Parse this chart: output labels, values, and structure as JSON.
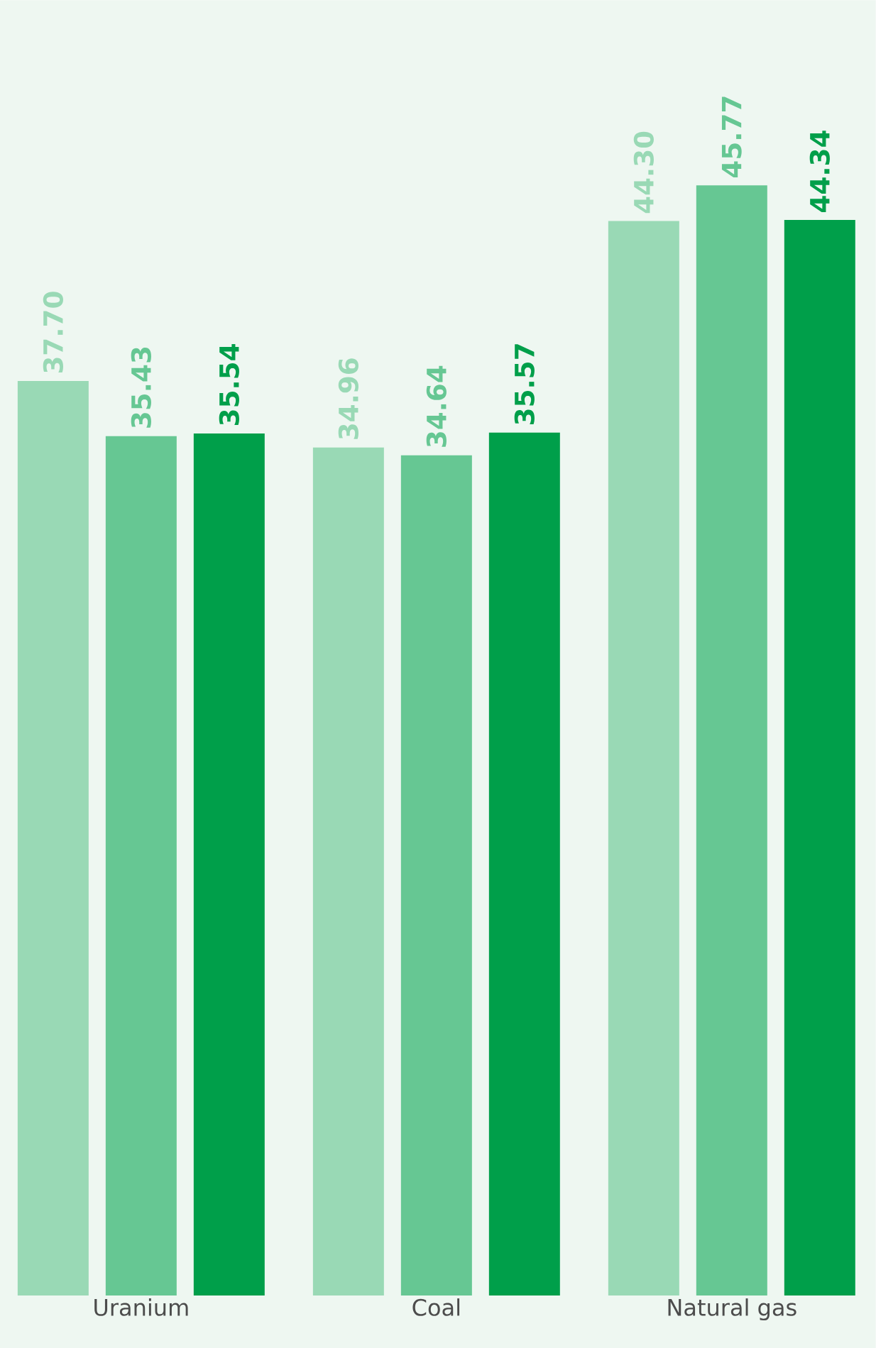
{
  "chart_data": {
    "type": "bar",
    "categories": [
      "Uranium",
      "Coal",
      "Natural gas"
    ],
    "series": [
      {
        "color": "#99d9b5",
        "values": [
          37.7,
          34.96,
          44.3
        ],
        "value_labels": [
          "37.70",
          "34.96",
          "44.30"
        ]
      },
      {
        "color": "#66c793",
        "values": [
          35.43,
          34.64,
          45.77
        ],
        "value_labels": [
          "35.43",
          "34.64",
          "45.77"
        ]
      },
      {
        "color": "#009f4a",
        "values": [
          35.54,
          35.57,
          44.34
        ],
        "value_labels": [
          "35.54",
          "35.57",
          "44.34"
        ]
      }
    ],
    "ylim": [
      0,
      53.4
    ],
    "tick_labels": "x"
  }
}
